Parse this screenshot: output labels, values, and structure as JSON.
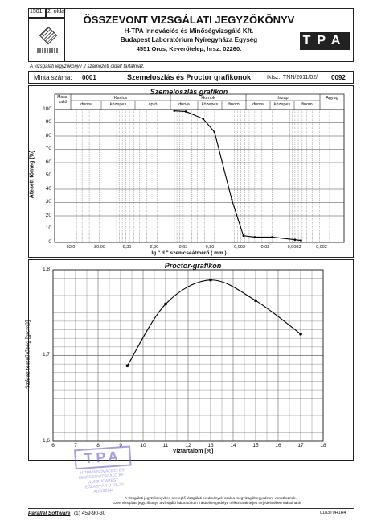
{
  "header": {
    "form_no": "1501",
    "page_label": "2. oldal",
    "title": "ÖSSZEVONT VIZSGÁLATI JEGYZŐKÖNYV",
    "org": "H-TPA Innovációs és Minőségvizsgáló Kft.",
    "lab": "Budapest Laboratórium Nyíregyháza Egység",
    "address": "4551 Oros, Keverőtelep, hrsz: 02260.",
    "logo": "TPA",
    "note": "A vizsgálati jegyzőkönyv 2 számozott oldalt tartalmaz."
  },
  "info": {
    "sample_label": "Minta száma:",
    "sample_no": "0001",
    "report_title": "Szemeloszlás és Proctor grafikonok",
    "ref_label": "Iktsz:",
    "ref_no": "TNN/2011/02/",
    "ref_suffix": "0092"
  },
  "grain_chart": {
    "title": "Szemeloszlás grafikon",
    "groups": [
      "Macs-kakő",
      "Kavics",
      "Homok",
      "Iszap",
      "Agyag"
    ],
    "subgroups": [
      "durva",
      "közepes",
      "apró",
      "durva",
      "közepes",
      "finom",
      "durva",
      "közepes",
      "finom"
    ],
    "ylabel": "Átesett tömeg (%)",
    "xlabel": "lg \" d \" szemcseátmérő ( mm )",
    "y_ticks": [
      "0",
      "10",
      "20",
      "30",
      "40",
      "50",
      "60",
      "70",
      "80",
      "90",
      "100"
    ],
    "x_ticks": [
      "63,0",
      "20,00",
      "6,30",
      "2,00",
      "0,63",
      "0,20",
      "0,063",
      "0,02",
      "0,0063",
      "0,002"
    ]
  },
  "chart_data": [
    {
      "type": "line",
      "title": "Szemeloszlás grafikon",
      "xlabel": "lg \" d \" szemcseátmérő ( mm )",
      "ylabel": "Átesett tömeg (%)",
      "x_scale": "log",
      "ylim": [
        0,
        100
      ],
      "x": [
        1.0,
        0.63,
        0.315,
        0.2,
        0.1,
        0.063,
        0.04,
        0.02,
        0.008,
        0.0063
      ],
      "y": [
        99,
        98.5,
        93,
        83,
        32,
        5,
        4,
        4,
        2,
        1.5
      ]
    },
    {
      "type": "line",
      "title": "Proctor-grafikon",
      "xlabel": "Víztartalom [%]",
      "ylabel": "Száraz testsűrűség [g/cm3]",
      "xlim": [
        6,
        18
      ],
      "ylim": [
        1.6,
        1.8
      ],
      "x_ticks": [
        "6",
        "7",
        "8",
        "9",
        "10",
        "11",
        "12",
        "13",
        "14",
        "15",
        "16",
        "17",
        "18"
      ],
      "y_ticks": [
        "1,6",
        "1,7",
        "1,8"
      ],
      "x": [
        9.3,
        11,
        13,
        15,
        17
      ],
      "y": [
        1.688,
        1.76,
        1.788,
        1.764,
        1.725
      ]
    }
  ],
  "footer": {
    "note1": "A vizsgálati jegyzőkönyvben szereplő vizsgálati eredmények csak a megvizsgált egyedekre vonatkoznak.",
    "note2": "Ezen vizsgálati jegyzőkönyv a vizsgáló laboratórium írásbeli engedélye nélkül csak teljes terjedelmében másolható!",
    "software": "Parallel Software",
    "phone": "(1) 459-90-30",
    "code": "0183T0H1H4"
  },
  "stamp": {
    "mark": "TPA",
    "lines": [
      "H-TPA INNOVÁCIÓS ÉS",
      "MINŐSÉGVIZSGÁLÓ KFT",
      "1116 BUDAPEST",
      "TÉGLAGYÁR U. 26-32",
      "ADÓSZÁM"
    ]
  }
}
